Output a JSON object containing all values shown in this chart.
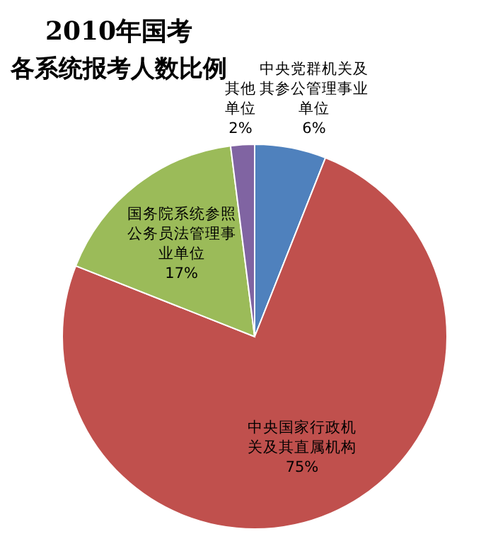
{
  "chart_data": {
    "type": "pie",
    "title": "2010年国考",
    "subtitle": "各系统报考人数比例",
    "categories": [
      "中央党群机关及其参公管理事业单位",
      "中央国家行政机关及其直属机构",
      "国务院系统参照公务员法管理事业单位",
      "其他单位"
    ],
    "values": [
      6,
      75,
      17,
      2
    ],
    "value_labels": [
      "6%",
      "75%",
      "17%",
      "2%"
    ],
    "colors": [
      "#4f81bd",
      "#c0504d",
      "#9bbb59",
      "#8064a2"
    ],
    "legend": false
  }
}
